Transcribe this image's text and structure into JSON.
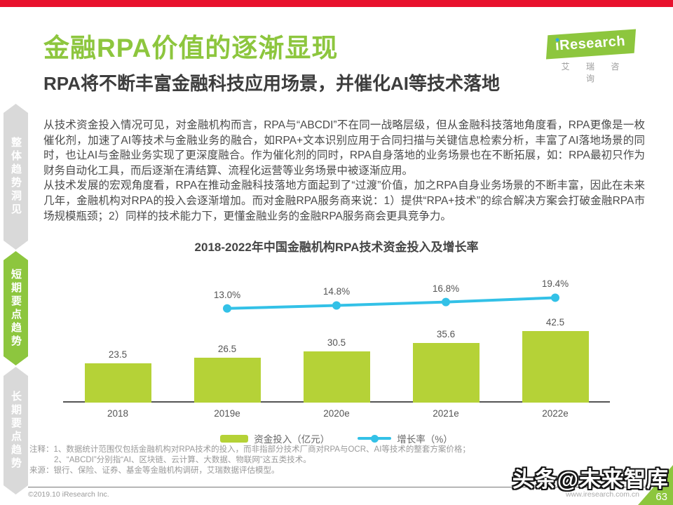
{
  "header": {
    "title": "金融RPA价值的逐渐显现",
    "subtitle": "RPA将不断丰富金融科技应用场景，并催化AI等技术落地"
  },
  "logo": {
    "brand_initial": "i",
    "brand_rest": "Research",
    "caption": "艾 瑞 咨 询"
  },
  "sidebar": {
    "items": [
      {
        "label": "整体趋势洞见",
        "active": false
      },
      {
        "label": "短期要点趋势",
        "active": true
      },
      {
        "label": "长期要点趋势",
        "active": false
      }
    ]
  },
  "body": {
    "paragraphs": [
      "从技术资金投入情况可见，对金融机构而言，RPA与“ABCDI”不在同一战略层级，但从金融科技落地角度看，RPA更像是一枚催化剂，加速了AI等技术与金融业务的融合，如RPA+文本识别应用于合同扫描与关键信息检索分析，丰富了AI落地场景的同时，也让AI与金融业务实现了更深度融合。作为催化剂的同时，RPA自身落地的业务场景也在不断拓展，如：RPA最初只作为财务自动化工具，而后逐渐在清结算、流程化运营等业务场景中被逐渐应用。",
      "从技术发展的宏观角度看，RPA在推动金融科技落地方面起到了“过渡”价值，加之RPA自身业务场景的不断丰富，因此在未来几年，金融机构对RPA的投入会逐渐增加。而对金融RPA服务商来说：1）提供“RPA+技术”的综合解决方案会打破金融RPA市场规模瓶颈；2）同样的技术能力下，更懂金融业务的金融RPA服务商会更具竞争力。"
    ]
  },
  "chart_data": {
    "type": "bar",
    "title": "2018-2022年中国金融机构RPA技术资金投入及增长率",
    "categories": [
      "2018",
      "2019e",
      "2020e",
      "2021e",
      "2022e"
    ],
    "series": [
      {
        "name": "资金投入（亿元）",
        "type": "bar",
        "color": "#b5d237",
        "values": [
          23.5,
          26.5,
          30.5,
          35.6,
          42.5
        ]
      },
      {
        "name": "增长率（%）",
        "type": "line",
        "color": "#33c1e7",
        "values": [
          null,
          13.0,
          14.8,
          16.8,
          19.4
        ],
        "point_labels": [
          "",
          "13.0%",
          "14.8%",
          "16.8%",
          "19.4%"
        ]
      }
    ],
    "xlabel": "",
    "ylabel": "",
    "grid": false,
    "legend_position": "bottom"
  },
  "notes": {
    "line1": "注释：1、数据统计范围仅包括金融机构对RPA技术的投入，而非指部分技术厂商对RPA与OCR、AI等技术的整套方案价格；",
    "line2": "2、“ABCDI”分别指“AI、区块链、云计算、大数据、物联网”这五类技术。",
    "line3": "来源：银行、保险、证券、基金等金融机构调研，艾瑞数据评估模型。"
  },
  "footer": {
    "copyright": "©2019.10 iResearch Inc.",
    "website": "www.iresearch.com.cn",
    "page_number": "63"
  },
  "watermark": "头条@未来智库",
  "colors": {
    "accent_red": "#e8112d",
    "brand_green": "#8dc63e",
    "bar_green": "#b5d237",
    "line_cyan": "#33c1e7"
  }
}
